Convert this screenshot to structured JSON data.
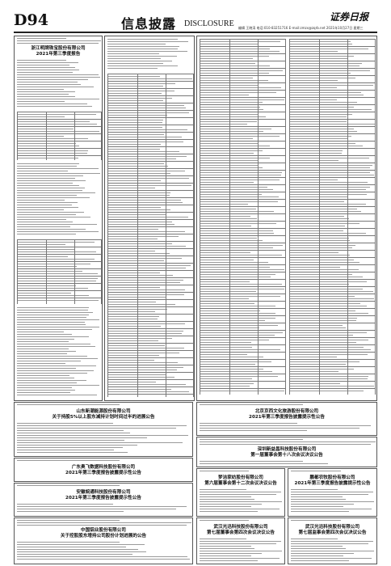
{
  "header": {
    "page_number": "D94",
    "section_title": "信息披露",
    "section_title_en": "DISCLOSURE",
    "masthead": "证券日报",
    "info": "编辑 王晓涛  电话:010-83251716  E-mail:zmzx@zqrb.net  2021年10月27日 星期三"
  },
  "notices": [
    {
      "company": "浙江明牌珠宝股份有限公司",
      "title": "2021年第三季度报告"
    },
    {
      "company": "山东新潮能源股份有限公司",
      "title": "关于持股5%以上股东减持计划时间过半的进展公告"
    },
    {
      "company": "广东奥飞数据科技股份有限公司",
      "title": "2021年第三季度报告披露提示性公告"
    },
    {
      "company": "安徽皖通科技股份有限公司",
      "title": "2021年第三季度报告披露提示性公告"
    },
    {
      "company": "中国铝业股份有限公司",
      "title": "关于控股股东增持公司股份计划进展的公告"
    },
    {
      "company": "北京京西文化旅游股份有限公司",
      "title": "2021年第三季度报告披露提示性公告"
    },
    {
      "company": "深圳新益昌科技股份有限公司",
      "title": "第一届董事会第十八次会议决议公告"
    },
    {
      "company": "梦洁家纺股份有限公司",
      "title": "第六届董事会第十二次会议决议公告"
    },
    {
      "company": "鹏都农牧股份有限公司",
      "title": "2021年第三季度报告披露提示性公告"
    },
    {
      "company": "武汉光迅科技股份有限公司",
      "title": "第七届董事会第四次会议决议公告"
    },
    {
      "company": "武汉光迅科技股份有限公司",
      "title": "第七届监事会第四次会议决议公告"
    }
  ]
}
